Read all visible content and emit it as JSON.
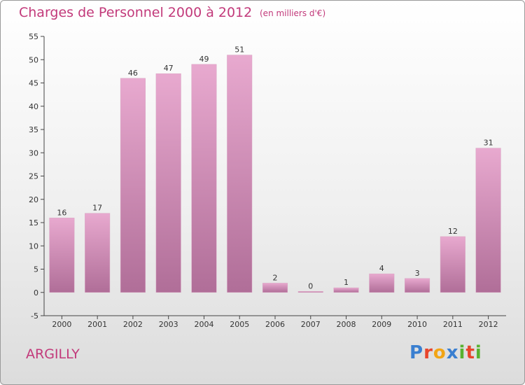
{
  "header": {
    "title": "Charges de Personnel 2000 à 2012",
    "subtitle": "(en milliers d'€)"
  },
  "footer": {
    "commune": "ARGILLY",
    "logo_text": "Proxiti",
    "logo_colors": [
      "#3a7fd0",
      "#e8452c",
      "#f2a516",
      "#3a7fd0",
      "#58b230",
      "#e8452c",
      "#58b230"
    ]
  },
  "colors": {
    "bar_top": "#e8a9cf",
    "bar_bottom": "#b06e98",
    "accent": "#c2397a"
  },
  "chart_data": {
    "type": "bar",
    "title": "Charges de Personnel 2000 à 2012",
    "subtitle": "(en milliers d'€)",
    "categories": [
      "2000",
      "2001",
      "2002",
      "2003",
      "2004",
      "2005",
      "2006",
      "2007",
      "2008",
      "2009",
      "2010",
      "2011",
      "2012"
    ],
    "values": [
      16,
      17,
      46,
      47,
      49,
      51,
      2,
      0,
      1,
      4,
      3,
      12,
      31
    ],
    "ylim": [
      -5,
      55
    ],
    "yticks": [
      -5,
      0,
      5,
      10,
      15,
      20,
      25,
      30,
      35,
      40,
      45,
      50,
      55
    ],
    "grid": false
  }
}
